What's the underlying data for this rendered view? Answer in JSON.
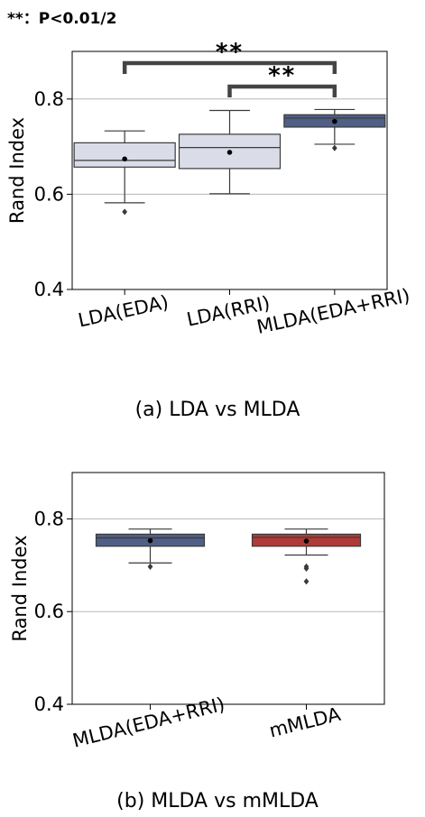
{
  "significance_note": "**：P<0.01/2",
  "chart_data": [
    {
      "type": "box",
      "ylabel": "Rand Index",
      "ylim": [
        0.4,
        0.9
      ],
      "yticks": [
        "0.4",
        "0.6",
        "0.8"
      ],
      "ytick_values": [
        0.4,
        0.6,
        0.8
      ],
      "gridlines": [
        0.6,
        0.8
      ],
      "caption": "(a) LDA vs MLDA",
      "categories": [
        "LDA(EDA)",
        "LDA(RRI)",
        "MLDA(EDA+RRI)"
      ],
      "boxes": [
        {
          "whisker_low": 0.582,
          "q1": 0.657,
          "median": 0.671,
          "q3": 0.708,
          "whisker_high": 0.733,
          "mean": 0.674,
          "outliers": [
            0.563
          ],
          "color": "#dadde8"
        },
        {
          "whisker_low": 0.601,
          "q1": 0.654,
          "median": 0.698,
          "q3": 0.726,
          "whisker_high": 0.776,
          "mean": 0.688,
          "outliers": [],
          "color": "#dadde8"
        },
        {
          "whisker_low": 0.705,
          "q1": 0.741,
          "median": 0.76,
          "q3": 0.767,
          "whisker_high": 0.778,
          "mean": 0.753,
          "outliers": [
            0.697
          ],
          "color": "#4f5f86"
        }
      ],
      "brackets": [
        {
          "from": 0,
          "to": 2,
          "label": "**"
        },
        {
          "from": 1,
          "to": 2,
          "label": "**"
        }
      ]
    },
    {
      "type": "box",
      "ylabel": "Rand Index",
      "ylim": [
        0.4,
        0.9
      ],
      "yticks": [
        "0.4",
        "0.6",
        "0.8"
      ],
      "ytick_values": [
        0.4,
        0.6,
        0.8
      ],
      "gridlines": [
        0.6,
        0.8
      ],
      "caption": "(b) MLDA vs mMLDA",
      "categories": [
        "MLDA(EDA+RRI)",
        "mMLDA"
      ],
      "boxes": [
        {
          "whisker_low": 0.705,
          "q1": 0.741,
          "median": 0.759,
          "q3": 0.767,
          "whisker_high": 0.778,
          "mean": 0.753,
          "outliers": [
            0.697
          ],
          "color": "#4f5f86"
        },
        {
          "whisker_low": 0.722,
          "q1": 0.741,
          "median": 0.76,
          "q3": 0.767,
          "whisker_high": 0.778,
          "mean": 0.752,
          "outliers": [
            0.693,
            0.697,
            0.665
          ],
          "color": "#b03a38"
        }
      ],
      "brackets": []
    }
  ]
}
